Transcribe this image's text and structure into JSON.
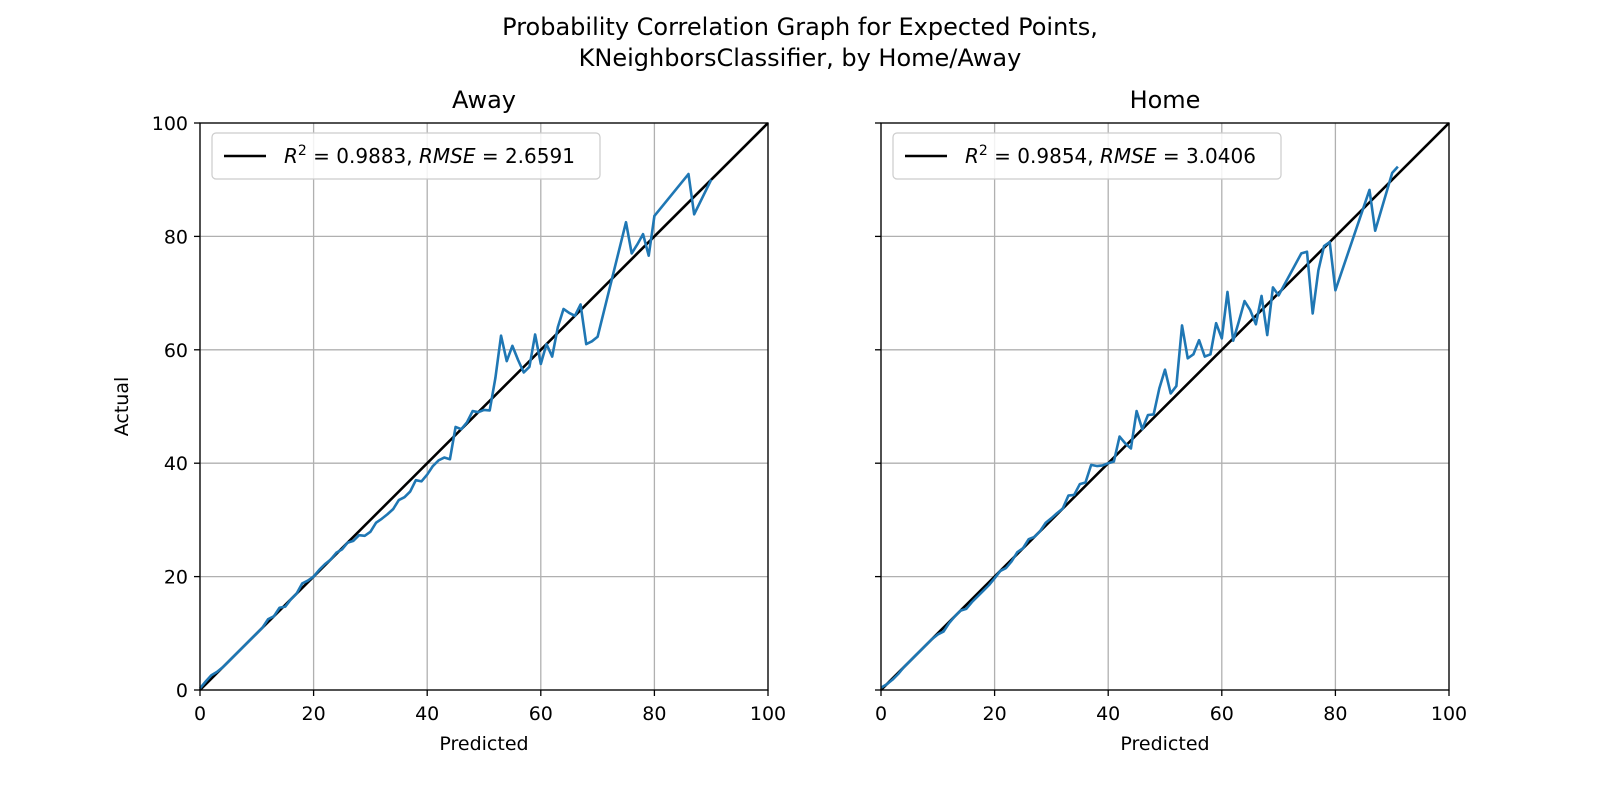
{
  "figure": {
    "title_line1": "Probability Correlation Graph for Expected Points,",
    "title_line2": "KNeighborsClassifier, by Home/Away"
  },
  "chart_data": [
    {
      "type": "line",
      "title": "Away",
      "xlabel": "Predicted",
      "ylabel": "Actual",
      "xlim": [
        0,
        100
      ],
      "ylim": [
        0,
        100
      ],
      "xticks": [
        "0",
        "20",
        "40",
        "60",
        "80",
        "100"
      ],
      "yticks": [
        "0",
        "20",
        "40",
        "60",
        "80",
        "100"
      ],
      "grid": true,
      "legend_position": "upper-left",
      "legend": {
        "r2_label": "R",
        "r2_exp": "2",
        "r2_value": "= 0.9883,",
        "rmse_label": "RMSE",
        "rmse_value": "= 2.6591"
      },
      "colors": {
        "identity": "#000000",
        "series": "#1f77b4"
      },
      "series": [
        {
          "role": "identity",
          "x": [
            0,
            100
          ],
          "y": [
            0,
            100
          ]
        },
        {
          "role": "observed",
          "x": [
            0,
            1,
            2,
            3,
            4,
            5,
            6,
            7,
            8,
            9,
            10,
            11,
            12,
            13,
            14,
            15,
            16,
            17,
            18,
            19,
            20,
            21,
            22,
            23,
            24,
            25,
            26,
            27,
            28,
            29,
            30,
            31,
            32,
            33,
            34,
            35,
            36,
            37,
            38,
            39,
            40,
            41,
            42,
            43,
            44,
            45,
            46,
            47,
            48,
            49,
            50,
            51,
            52,
            53,
            54,
            55,
            56,
            57,
            58,
            59,
            60,
            61,
            62,
            63,
            64,
            65,
            66,
            67,
            68,
            69,
            70,
            75,
            76,
            77,
            78,
            79,
            80,
            86,
            87,
            90
          ],
          "y": [
            0.3,
            1.5,
            2.6,
            3.2,
            4.0,
            5.0,
            6.0,
            7.0,
            8.0,
            9.0,
            10.0,
            11.0,
            12.5,
            13.0,
            14.5,
            14.7,
            16.0,
            17.0,
            18.8,
            19.3,
            20.0,
            21.2,
            22.2,
            23.0,
            24.2,
            24.8,
            26.0,
            26.3,
            27.3,
            27.2,
            27.9,
            29.5,
            30.2,
            31.0,
            31.9,
            33.5,
            34.0,
            35.0,
            37.0,
            36.8,
            38.0,
            39.5,
            40.5,
            41.0,
            40.7,
            46.4,
            46.0,
            47.2,
            49.2,
            49.0,
            49.4,
            49.3,
            55.0,
            62.5,
            58.0,
            60.7,
            58.2,
            56.0,
            57.0,
            62.7,
            57.5,
            61.0,
            58.8,
            64.0,
            67.2,
            66.5,
            66.0,
            68.0,
            61.0,
            61.5,
            62.3,
            82.5,
            77.0,
            78.6,
            80.4,
            76.6,
            83.6,
            91.0,
            83.9,
            90.0
          ]
        }
      ]
    },
    {
      "type": "line",
      "title": "Home",
      "xlabel": "Predicted",
      "ylabel": "",
      "xlim": [
        0,
        100
      ],
      "ylim": [
        0,
        100
      ],
      "xticks": [
        "0",
        "20",
        "40",
        "60",
        "80",
        "100"
      ],
      "yticks": [],
      "grid": true,
      "legend_position": "upper-left",
      "legend": {
        "r2_label": "R",
        "r2_exp": "2",
        "r2_value": "= 0.9854,",
        "rmse_label": "RMSE",
        "rmse_value": "= 3.0406"
      },
      "colors": {
        "identity": "#000000",
        "series": "#1f77b4"
      },
      "series": [
        {
          "role": "identity",
          "x": [
            0,
            100
          ],
          "y": [
            0,
            100
          ]
        },
        {
          "role": "observed",
          "x": [
            0,
            1,
            2,
            3,
            4,
            5,
            6,
            7,
            8,
            9,
            10,
            11,
            12,
            13,
            14,
            15,
            16,
            17,
            18,
            19,
            20,
            21,
            22,
            23,
            24,
            25,
            26,
            27,
            28,
            29,
            30,
            31,
            32,
            33,
            34,
            35,
            36,
            37,
            38,
            39,
            40,
            41,
            42,
            43,
            44,
            45,
            46,
            47,
            48,
            49,
            50,
            51,
            52,
            53,
            54,
            55,
            56,
            57,
            58,
            59,
            60,
            61,
            62,
            63,
            64,
            65,
            66,
            67,
            68,
            69,
            70,
            74,
            75,
            76,
            77,
            78,
            79,
            80,
            86,
            87,
            90,
            91
          ],
          "y": [
            0.4,
            1.0,
            1.8,
            2.8,
            4.0,
            5.0,
            6.0,
            7.0,
            8.0,
            9.0,
            9.8,
            10.3,
            11.8,
            13.0,
            14.0,
            14.3,
            15.5,
            16.5,
            17.5,
            18.5,
            19.7,
            21.0,
            21.5,
            22.7,
            24.3,
            25.0,
            26.6,
            27.0,
            28.0,
            29.5,
            30.3,
            31.2,
            32.0,
            34.3,
            34.4,
            36.3,
            36.6,
            39.7,
            39.5,
            39.6,
            40.0,
            40.3,
            44.7,
            43.5,
            42.6,
            49.2,
            46.0,
            48.5,
            48.6,
            53.2,
            56.5,
            52.3,
            53.6,
            64.3,
            58.5,
            59.2,
            61.7,
            58.8,
            59.2,
            64.7,
            62.0,
            70.2,
            61.6,
            65.0,
            68.6,
            67.0,
            64.5,
            69.5,
            62.6,
            71.0,
            69.6,
            77.0,
            77.3,
            66.4,
            74.0,
            78.3,
            79.0,
            70.5,
            88.2,
            81.0,
            91.2,
            92.3
          ]
        }
      ]
    }
  ]
}
